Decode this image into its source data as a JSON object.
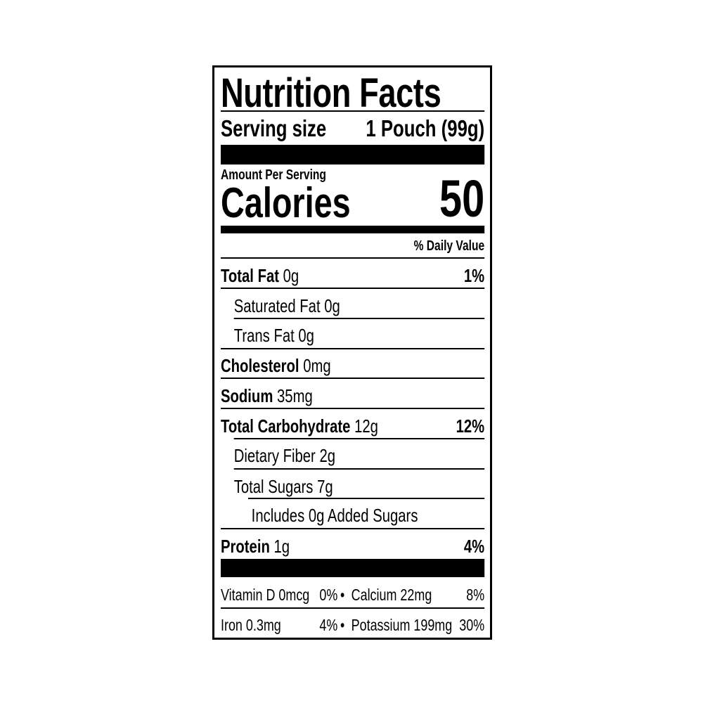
{
  "title": "Nutrition Facts",
  "serving": {
    "label": "Serving size",
    "value": "1 Pouch (99g)"
  },
  "amount_per_serving": "Amount Per Serving",
  "calories": {
    "label": "Calories",
    "value": "50"
  },
  "daily_value_header": "% Daily Value",
  "nutrients": [
    {
      "name": "Total Fat",
      "amount": "0g",
      "dv": "1%"
    },
    {
      "name": "Saturated Fat",
      "amount": "0g",
      "dv": ""
    },
    {
      "name": "Trans Fat",
      "amount": "0g",
      "dv": ""
    },
    {
      "name": "Cholesterol",
      "amount": "0mg",
      "dv": ""
    },
    {
      "name": "Sodium",
      "amount": "35mg",
      "dv": ""
    },
    {
      "name": "Total Carbohydrate",
      "amount": "12g",
      "dv": "12%"
    },
    {
      "name": "Dietary Fiber",
      "amount": "2g",
      "dv": ""
    },
    {
      "name": "Total Sugars",
      "amount": "7g",
      "dv": ""
    },
    {
      "name": "Includes 0g Added Sugars",
      "amount": "",
      "dv": ""
    },
    {
      "name": "Protein",
      "amount": "1g",
      "dv": "4%"
    }
  ],
  "micros": [
    {
      "left_name": "Vitamin D 0mcg",
      "left_dv": "0%",
      "bullet": "•",
      "right_name": "Calcium 22mg",
      "right_dv": "8%"
    },
    {
      "left_name": "Iron 0.3mg",
      "left_dv": "4%",
      "bullet": "•",
      "right_name": "Potassium 199mg",
      "right_dv": "30%"
    }
  ]
}
